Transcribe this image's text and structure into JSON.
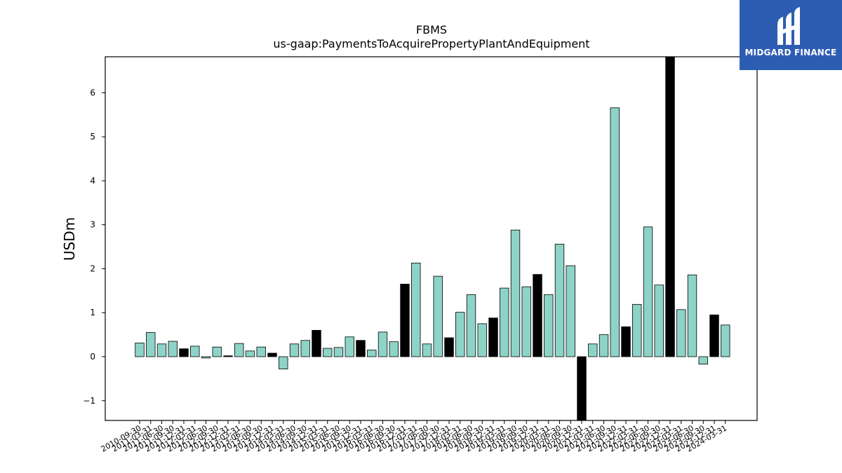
{
  "logo": {
    "text": "MIDGARD FINANCE"
  },
  "chart_data": {
    "type": "bar",
    "title": "FBMS",
    "subtitle": "us-gaap:PaymentsToAcquirePropertyPlantAndEquipment",
    "ylabel": "USDm",
    "xlabel": "",
    "ylim": [
      -1.45,
      6.82
    ],
    "yticks": [
      -1,
      0,
      1,
      2,
      3,
      4,
      5,
      6
    ],
    "ytick_labels": [
      "−1",
      "0",
      "1",
      "2",
      "3",
      "4",
      "5",
      "6"
    ],
    "grid": false,
    "colors": {
      "quarter": "#8dd3c7",
      "annual": "#000000",
      "edge": "#000000"
    },
    "categories": [
      "2010-09-30",
      "2011-03-31",
      "2011-06-30",
      "2011-09-30",
      "2011-12-31",
      "2012-03-31",
      "2012-06-30",
      "2012-09-30",
      "2012-12-31",
      "2013-03-31",
      "2013-06-30",
      "2013-09-30",
      "2013-12-31",
      "2014-03-31",
      "2014-06-30",
      "2014-09-30",
      "2014-12-31",
      "2015-03-31",
      "2015-06-30",
      "2015-09-30",
      "2015-12-31",
      "2016-03-31",
      "2016-06-30",
      "2016-09-30",
      "2016-12-31",
      "2017-03-31",
      "2017-06-30",
      "2017-09-30",
      "2017-12-31",
      "2018-03-31",
      "2018-06-30",
      "2018-09-30",
      "2018-12-31",
      "2019-03-31",
      "2019-06-30",
      "2019-09-30",
      "2019-12-31",
      "2020-03-31",
      "2020-06-30",
      "2020-09-30",
      "2020-12-31",
      "2021-03-31",
      "2021-06-30",
      "2021-09-30",
      "2021-12-31",
      "2022-03-31",
      "2022-06-30",
      "2022-09-30",
      "2022-12-31",
      "2023-03-31",
      "2023-06-30",
      "2023-09-30",
      "2023-12-31",
      "2024-03-31"
    ],
    "values": [
      0.31,
      0.55,
      0.29,
      0.35,
      0.18,
      0.24,
      -0.03,
      0.22,
      0.02,
      0.3,
      0.13,
      0.22,
      0.08,
      -0.28,
      0.29,
      0.37,
      0.6,
      0.19,
      0.21,
      0.45,
      0.37,
      0.15,
      0.56,
      0.34,
      1.65,
      2.13,
      0.29,
      1.83,
      0.43,
      1.01,
      1.41,
      0.75,
      0.88,
      1.56,
      2.88,
      1.59,
      1.87,
      1.41,
      2.56,
      2.07,
      -1.45,
      0.29,
      0.5,
      5.66,
      0.68,
      1.19,
      2.95,
      1.63,
      6.82,
      1.07,
      1.86,
      -0.17,
      0.95,
      0.72
    ],
    "annual": [
      false,
      false,
      false,
      false,
      true,
      false,
      false,
      false,
      true,
      false,
      false,
      false,
      true,
      false,
      false,
      false,
      true,
      false,
      false,
      false,
      true,
      false,
      false,
      false,
      true,
      false,
      false,
      false,
      true,
      false,
      false,
      false,
      true,
      false,
      false,
      false,
      true,
      false,
      false,
      false,
      true,
      false,
      false,
      false,
      true,
      false,
      false,
      false,
      true,
      false,
      false,
      false,
      true,
      false
    ]
  }
}
